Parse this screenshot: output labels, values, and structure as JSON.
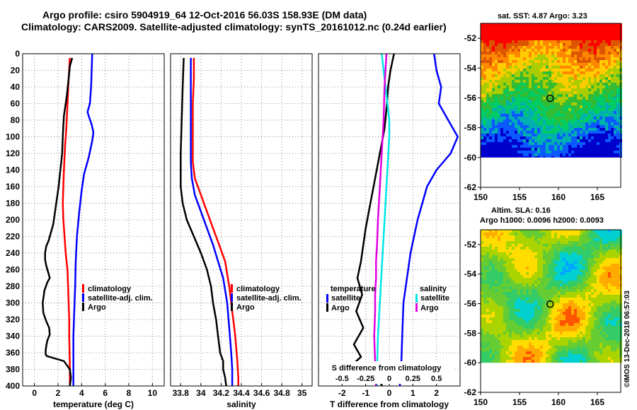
{
  "figure": {
    "title_line1": "Argo profile: csiro 5904919_64 12-Oct-2016 56.03S 158.93E (DM data)",
    "title_line2": "Climatology: CARS2009. Satellite-adjusted climatology: synTS_20161012.nc (0.24d earlier)",
    "credit": "©IMOS 13-Dec-2018 06:57:03"
  },
  "colors": {
    "climatology": "#ff0000",
    "satellite": "#0000ff",
    "argo": "#000000",
    "sat_salinity": "#00e5e5",
    "argo_salinity": "#e000e0"
  },
  "chart_data": [
    {
      "type": "line",
      "id": "temperature",
      "xlabel": "temperature (deg C)",
      "ylabel": "depth",
      "xlim": [
        -1,
        11
      ],
      "ylim": [
        400,
        0
      ],
      "xticks": [
        "0",
        "2",
        "4",
        "6",
        "8",
        "10"
      ],
      "yticks": [
        "0",
        "20",
        "40",
        "60",
        "80",
        "100",
        "120",
        "140",
        "160",
        "180",
        "200",
        "220",
        "240",
        "260",
        "280",
        "300",
        "320",
        "340",
        "360",
        "380",
        "400"
      ],
      "legend": [
        "climatology",
        "satellite-adj. clim.",
        "Argo"
      ],
      "series": [
        {
          "name": "climatology",
          "color": "#ff0000",
          "x": [
            3.0,
            2.9,
            2.8,
            2.7,
            2.6,
            2.5,
            2.45,
            2.4,
            2.45,
            2.55,
            2.65,
            2.8,
            2.85,
            2.9,
            2.95,
            2.95,
            3.0,
            3.0
          ],
          "depth": [
            5,
            30,
            60,
            90,
            110,
            140,
            160,
            180,
            200,
            220,
            240,
            260,
            280,
            300,
            320,
            340,
            380,
            400
          ]
        },
        {
          "name": "satellite-adj. clim.",
          "color": "#0000ff",
          "x": [
            4.9,
            4.85,
            4.8,
            4.7,
            4.6,
            4.5,
            4.6,
            4.85,
            5.0,
            4.9,
            4.6,
            4.2,
            4.0,
            3.8,
            3.6,
            3.5,
            3.45,
            3.4,
            3.35,
            3.3,
            3.3,
            3.3,
            3.3
          ],
          "depth": [
            0,
            20,
            40,
            60,
            65,
            70,
            75,
            85,
            95,
            105,
            125,
            145,
            165,
            190,
            220,
            250,
            280,
            300,
            320,
            340,
            360,
            380,
            400
          ]
        },
        {
          "name": "Argo",
          "color": "#000000",
          "x": [
            3.2,
            3.0,
            2.9,
            2.75,
            2.5,
            2.4,
            2.35,
            2.2,
            2.05,
            1.9,
            1.75,
            1.6,
            1.4,
            1.2,
            1.0,
            0.9,
            0.9,
            1.0,
            1.2,
            1.3,
            1.1,
            0.85,
            0.7,
            0.75,
            1.0,
            1.25,
            1.3,
            1.1,
            1.0,
            0.95,
            0.95,
            1.05,
            2.5,
            3.0,
            3.1,
            3.0
          ],
          "depth": [
            5,
            15,
            30,
            50,
            75,
            100,
            120,
            140,
            160,
            175,
            190,
            205,
            215,
            225,
            232,
            240,
            248,
            255,
            265,
            270,
            275,
            285,
            300,
            312,
            322,
            330,
            338,
            345,
            352,
            358,
            362,
            364,
            370,
            380,
            390,
            400
          ]
        }
      ]
    },
    {
      "type": "line",
      "id": "salinity",
      "xlabel": "salinity",
      "ylabel": "depth",
      "xlim": [
        33.7,
        35.1
      ],
      "ylim": [
        400,
        0
      ],
      "xticks": [
        "33.8",
        "34",
        "34.2",
        "34.4",
        "34.6",
        "34.8",
        "35"
      ],
      "legend": [
        "climatology",
        "satellite-adj. clim.",
        "Argo"
      ],
      "series": [
        {
          "name": "climatology",
          "color": "#ff0000",
          "x": [
            33.93,
            33.93,
            33.92,
            33.92,
            33.92,
            33.94,
            34.0,
            34.06,
            34.12,
            34.18,
            34.24,
            34.28,
            34.31,
            34.34,
            34.36,
            34.37,
            34.37
          ],
          "depth": [
            5,
            30,
            60,
            90,
            130,
            150,
            170,
            190,
            210,
            230,
            250,
            280,
            310,
            340,
            370,
            390,
            400
          ]
        },
        {
          "name": "satellite-adj. clim.",
          "color": "#0000ff",
          "x": [
            33.9,
            33.9,
            33.9,
            33.9,
            33.91,
            33.94,
            34.0,
            34.06,
            34.12,
            34.17,
            34.22,
            34.26,
            34.28,
            34.3,
            34.31,
            34.31
          ],
          "depth": [
            5,
            50,
            100,
            130,
            150,
            170,
            190,
            210,
            230,
            250,
            270,
            300,
            330,
            360,
            380,
            400
          ]
        },
        {
          "name": "Argo",
          "color": "#000000",
          "x": [
            33.83,
            33.82,
            33.81,
            33.8,
            33.8,
            33.82,
            33.86,
            33.93,
            34.0,
            34.06,
            34.1,
            34.12,
            34.15,
            34.17,
            34.19,
            34.22,
            34.22,
            34.24,
            34.25
          ],
          "depth": [
            5,
            40,
            80,
            120,
            160,
            180,
            200,
            220,
            240,
            260,
            280,
            300,
            320,
            340,
            360,
            370,
            380,
            390,
            400
          ]
        }
      ]
    },
    {
      "type": "line",
      "id": "difference",
      "xlabel": "T difference from climatology",
      "ylabel": "depth",
      "xlim": [
        -3,
        3
      ],
      "ylim": [
        400,
        0
      ],
      "xticks": [
        "-2",
        "-1",
        "0",
        "1",
        "2"
      ],
      "secondary_xlabel": "S difference from climatology",
      "secondary_xticks": [
        "-0.5",
        "-0.25",
        "0",
        "0.25",
        "0.5"
      ],
      "legend_temperature": {
        "heading": "temperature",
        "items": [
          "satellite",
          "Argo"
        ]
      },
      "legend_salinity": {
        "heading": "salinity",
        "items": [
          "satellite",
          "Argo"
        ]
      },
      "series": [
        {
          "name": "T satellite",
          "color": "#0000ff",
          "x": [
            1.9,
            2.0,
            2.2,
            2.1,
            2.5,
            2.9,
            2.6,
            2.0,
            1.6,
            1.4,
            1.2,
            1.05,
            0.9,
            0.8,
            0.6,
            0.55,
            0.5,
            0.45,
            0.45
          ],
          "depth": [
            0,
            20,
            40,
            60,
            80,
            100,
            120,
            140,
            160,
            180,
            200,
            220,
            240,
            260,
            300,
            340,
            380,
            390,
            400
          ]
        },
        {
          "name": "T Argo",
          "color": "#000000",
          "x": [
            0.2,
            0.05,
            -0.05,
            -0.1,
            -0.2,
            -0.4,
            -0.6,
            -0.8,
            -1.0,
            -1.1,
            -1.2,
            -1.35,
            -1.15,
            -1.4,
            -1.1,
            -1.5,
            -1.3,
            -1.2,
            -1.4,
            -0.7,
            -0.5,
            -0.3
          ],
          "depth": [
            0,
            20,
            40,
            60,
            90,
            120,
            150,
            180,
            210,
            230,
            250,
            270,
            290,
            310,
            330,
            350,
            360,
            365,
            370,
            380,
            390,
            400
          ]
        },
        {
          "name": "S satellite",
          "color": "#00e5e5",
          "x": [
            -0.08,
            -0.06,
            -0.04,
            -0.02,
            0.0,
            0.0,
            -0.02,
            -0.04,
            -0.06,
            -0.08,
            -0.1,
            -0.12,
            -0.13,
            -0.13
          ],
          "depth": [
            0,
            20,
            40,
            60,
            80,
            100,
            140,
            180,
            220,
            260,
            300,
            340,
            380,
            400
          ]
        },
        {
          "name": "S Argo",
          "color": "#e000e0",
          "x": [
            -0.03,
            -0.05,
            -0.06,
            -0.08,
            -0.1,
            -0.12,
            -0.13,
            -0.14,
            -0.14,
            -0.15,
            -0.15,
            -0.16,
            -0.15,
            -0.15,
            -0.14
          ],
          "depth": [
            0,
            40,
            80,
            120,
            160,
            200,
            230,
            250,
            270,
            290,
            310,
            340,
            370,
            390,
            400
          ]
        }
      ]
    },
    {
      "type": "heatmap",
      "id": "sst_map",
      "title": "sat. SST: 4.87 Argo: 3.23",
      "xticks": [
        "150",
        "155",
        "160",
        "165"
      ],
      "yticks": [
        "-52",
        "-54",
        "-56",
        "-58",
        "-60",
        "-62"
      ],
      "xlim": [
        150,
        168
      ],
      "ylim": [
        -62,
        -51
      ],
      "marker": {
        "lon": 158.93,
        "lat": -56.03
      }
    },
    {
      "type": "heatmap",
      "id": "sla_map",
      "title_line1": "Altim. SLA: 0.16",
      "title_line2": "Argo h1000: 0.0096 h2000: 0.0093",
      "xticks": [
        "150",
        "155",
        "160",
        "165"
      ],
      "yticks": [
        "-52",
        "-54",
        "-56",
        "-58",
        "-60",
        "-62"
      ],
      "xlim": [
        150,
        168
      ],
      "ylim": [
        -62,
        -51
      ],
      "marker": {
        "lon": 158.93,
        "lat": -56.03
      }
    }
  ]
}
